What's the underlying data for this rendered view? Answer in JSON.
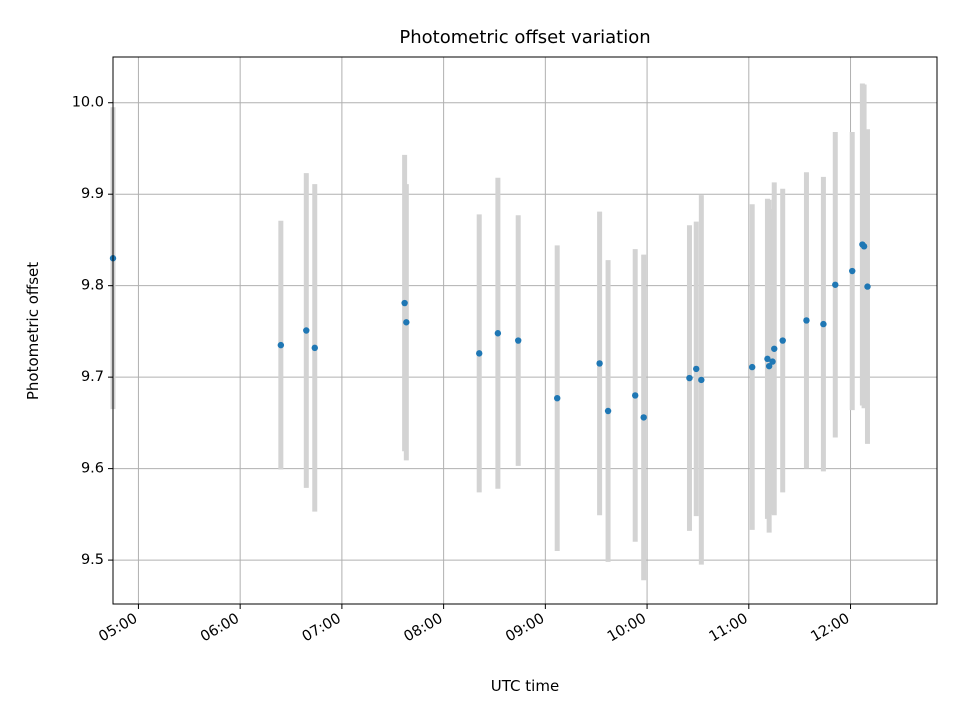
{
  "chart_data": {
    "type": "scatter",
    "title": "Photometric offset variation",
    "xlabel": "UTC time",
    "ylabel": "Photometric offset",
    "xlim": [
      "04:45",
      "12:51"
    ],
    "ylim": [
      9.452,
      10.05
    ],
    "grid": true,
    "colors": {
      "point": "#1f77b4",
      "errorbar": "#d3d3d3",
      "grid": "#b0b0b0"
    },
    "x_ticks": [
      "05:00",
      "06:00",
      "07:00",
      "08:00",
      "09:00",
      "10:00",
      "11:00",
      "12:00"
    ],
    "y_ticks": [
      "9.5",
      "9.6",
      "9.7",
      "9.8",
      "9.9",
      "10.0"
    ],
    "points": [
      {
        "x": "04:45",
        "y": 9.83,
        "err": 0.165
      },
      {
        "x": "06:24",
        "y": 9.735,
        "err": 0.136
      },
      {
        "x": "06:39",
        "y": 9.751,
        "err": 0.172
      },
      {
        "x": "06:44",
        "y": 9.732,
        "err": 0.179
      },
      {
        "x": "07:37",
        "y": 9.781,
        "err": 0.162
      },
      {
        "x": "07:38",
        "y": 9.76,
        "err": 0.151
      },
      {
        "x": "08:21",
        "y": 9.726,
        "err": 0.152
      },
      {
        "x": "08:32",
        "y": 9.748,
        "err": 0.17
      },
      {
        "x": "08:44",
        "y": 9.74,
        "err": 0.137
      },
      {
        "x": "09:07",
        "y": 9.677,
        "err": 0.167
      },
      {
        "x": "09:32",
        "y": 9.715,
        "err": 0.166
      },
      {
        "x": "09:37",
        "y": 9.663,
        "err": 0.165
      },
      {
        "x": "09:53",
        "y": 9.68,
        "err": 0.16
      },
      {
        "x": "09:58",
        "y": 9.656,
        "err": 0.178
      },
      {
        "x": "10:25",
        "y": 9.699,
        "err": 0.167
      },
      {
        "x": "10:29",
        "y": 9.709,
        "err": 0.161
      },
      {
        "x": "10:32",
        "y": 9.697,
        "err": 0.202
      },
      {
        "x": "11:02",
        "y": 9.711,
        "err": 0.178
      },
      {
        "x": "11:11",
        "y": 9.72,
        "err": 0.175
      },
      {
        "x": "11:12",
        "y": 9.712,
        "err": 0.182
      },
      {
        "x": "11:14",
        "y": 9.717,
        "err": 0.167
      },
      {
        "x": "11:15",
        "y": 9.731,
        "err": 0.182
      },
      {
        "x": "11:20",
        "y": 9.74,
        "err": 0.166
      },
      {
        "x": "11:34",
        "y": 9.762,
        "err": 0.162
      },
      {
        "x": "11:44",
        "y": 9.758,
        "err": 0.161
      },
      {
        "x": "11:51",
        "y": 9.801,
        "err": 0.167
      },
      {
        "x": "12:01",
        "y": 9.816,
        "err": 0.152
      },
      {
        "x": "12:07",
        "y": 9.845,
        "err": 0.176
      },
      {
        "x": "12:08",
        "y": 9.843,
        "err": 0.177
      },
      {
        "x": "12:10",
        "y": 9.799,
        "err": 0.172
      }
    ]
  }
}
